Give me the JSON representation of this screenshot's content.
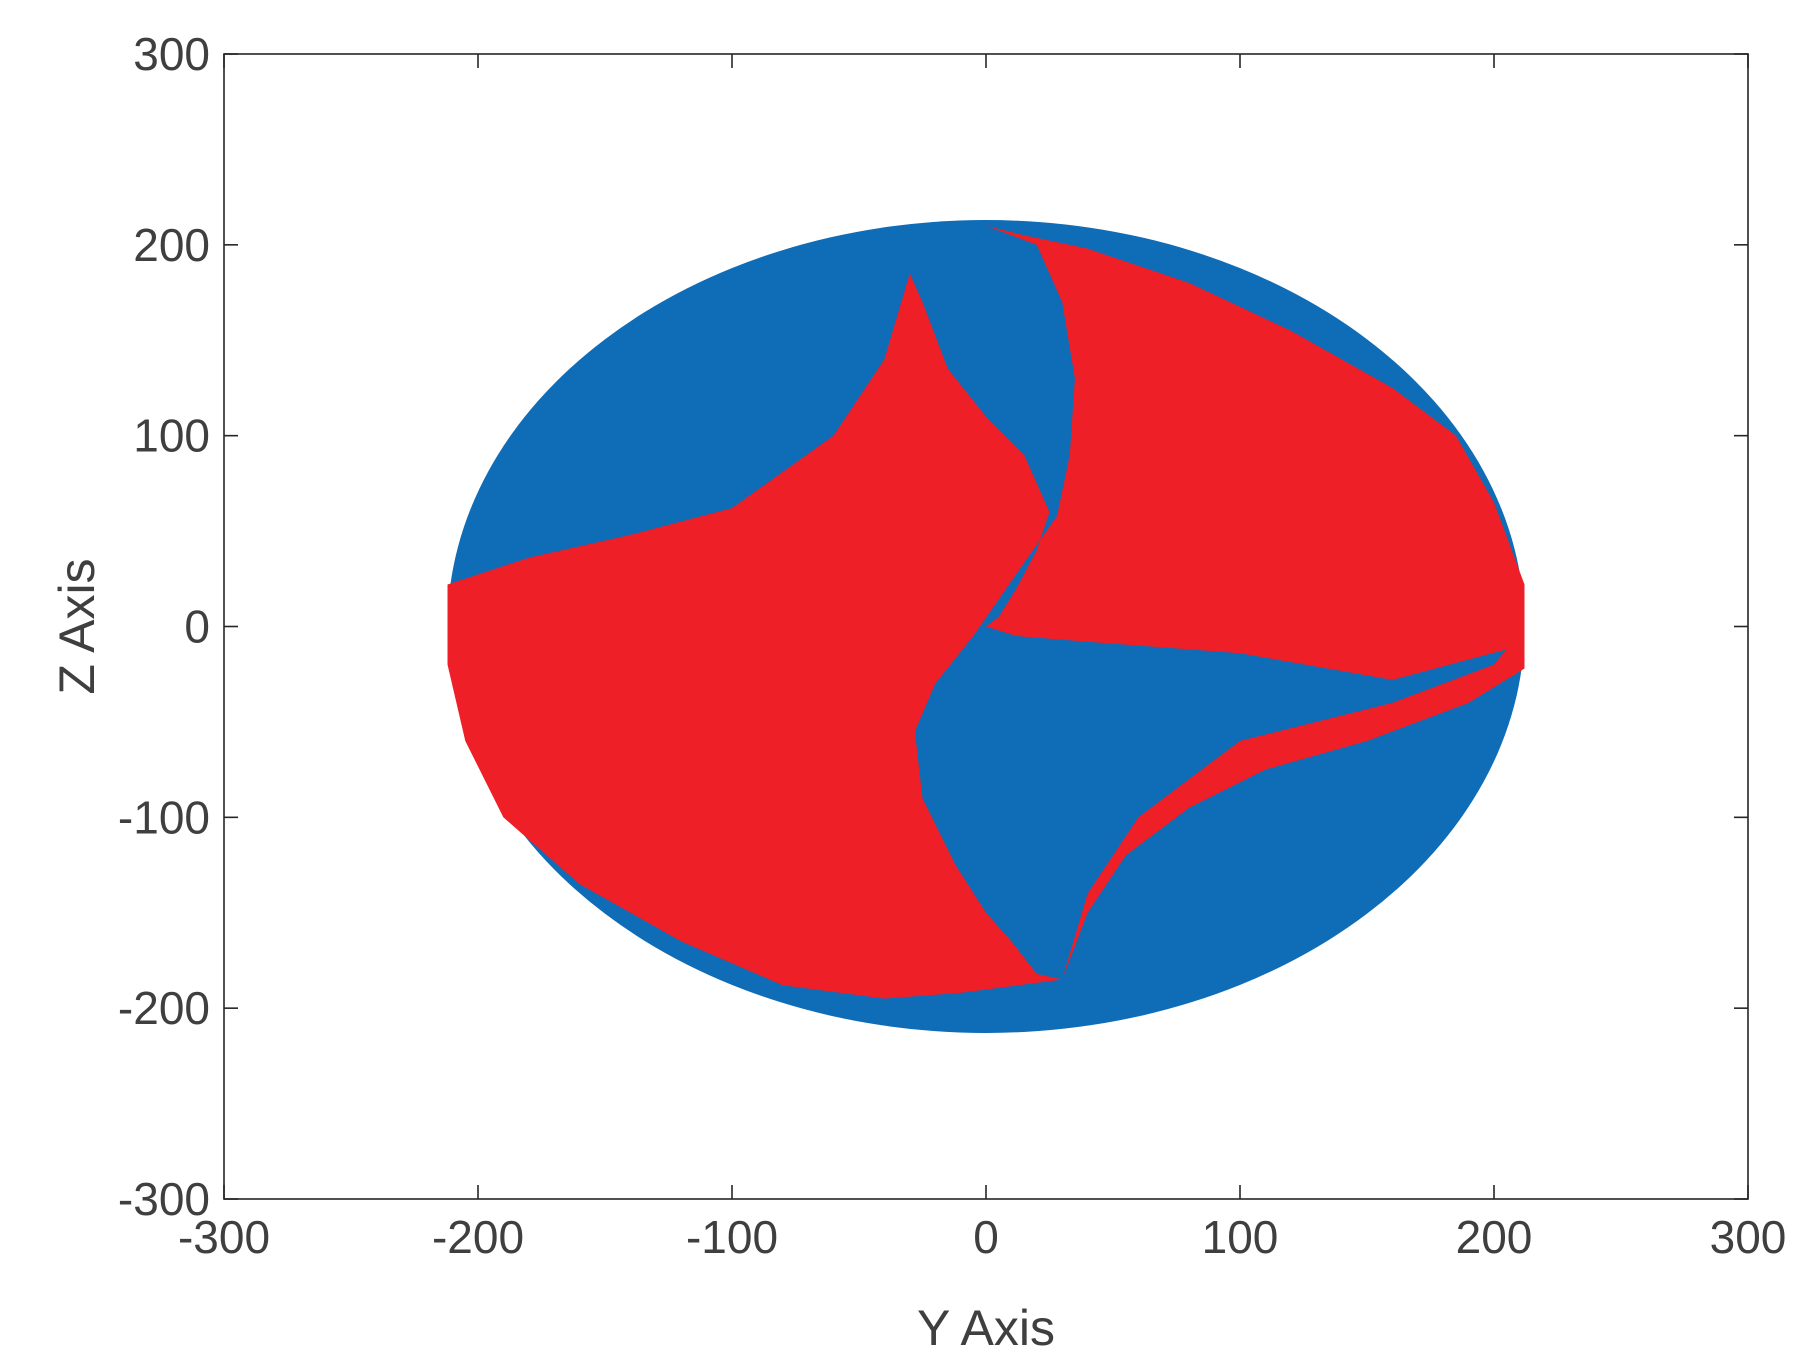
{
  "chart_data": {
    "type": "scatter",
    "title": "",
    "xlabel": "Y Axis",
    "ylabel": "Z Axis",
    "xlim": [
      -300,
      300
    ],
    "ylim": [
      -300,
      300
    ],
    "xticks": [
      -300,
      -200,
      -100,
      0,
      100,
      200,
      300
    ],
    "yticks": [
      -300,
      -200,
      -100,
      0,
      100,
      200,
      300
    ],
    "xtick_labels": [
      "-300",
      "-200",
      "-100",
      "0",
      "100",
      "200",
      "300"
    ],
    "ytick_labels": [
      "-300",
      "-200",
      "-100",
      "0",
      "100",
      "200",
      "300"
    ],
    "grid": false,
    "box": true,
    "colors": {
      "blue": "#0f6cb6",
      "red": "#ee1f27",
      "axis": "#262626",
      "text": "#3f3f3f"
    },
    "series": [
      {
        "color": "blue",
        "shape": "ellipse",
        "center": [
          0,
          0
        ],
        "radius_y": 212,
        "radius_z": 213
      },
      {
        "color": "red",
        "shape": "polygon",
        "points": [
          [
            -212,
            22
          ],
          [
            -180,
            36
          ],
          [
            -140,
            48
          ],
          [
            -100,
            62
          ],
          [
            -60,
            100
          ],
          [
            -40,
            140
          ],
          [
            -30,
            185
          ],
          [
            -25,
            170
          ],
          [
            -15,
            135
          ],
          [
            0,
            110
          ],
          [
            15,
            90
          ],
          [
            25,
            60
          ],
          [
            20,
            40
          ],
          [
            12,
            20
          ],
          [
            5,
            5
          ],
          [
            0,
            0
          ],
          [
            12,
            -5
          ],
          [
            40,
            -8
          ],
          [
            100,
            -14
          ],
          [
            160,
            -28
          ],
          [
            205,
            -12
          ],
          [
            212,
            0
          ],
          [
            212,
            22
          ],
          [
            200,
            65
          ],
          [
            185,
            100
          ],
          [
            160,
            125
          ],
          [
            120,
            155
          ],
          [
            80,
            180
          ],
          [
            40,
            198
          ],
          [
            15,
            205
          ],
          [
            0,
            210
          ],
          [
            20,
            200
          ],
          [
            30,
            170
          ],
          [
            35,
            130
          ],
          [
            33,
            90
          ],
          [
            28,
            58
          ],
          [
            8,
            20
          ],
          [
            -5,
            -5
          ],
          [
            -20,
            -30
          ],
          [
            -28,
            -55
          ],
          [
            -25,
            -90
          ],
          [
            -12,
            -125
          ],
          [
            0,
            -150
          ],
          [
            10,
            -165
          ],
          [
            20,
            -182
          ],
          [
            30,
            -185
          ],
          [
            40,
            -150
          ],
          [
            55,
            -120
          ],
          [
            80,
            -95
          ],
          [
            110,
            -75
          ],
          [
            150,
            -60
          ],
          [
            190,
            -40
          ],
          [
            212,
            -22
          ],
          [
            212,
            0
          ],
          [
            200,
            -20
          ],
          [
            160,
            -40
          ],
          [
            100,
            -60
          ],
          [
            60,
            -100
          ],
          [
            40,
            -140
          ],
          [
            30,
            -185
          ],
          [
            -10,
            -192
          ],
          [
            -40,
            -195
          ],
          [
            -80,
            -188
          ],
          [
            -120,
            -165
          ],
          [
            -160,
            -135
          ],
          [
            -190,
            -100
          ],
          [
            -205,
            -60
          ],
          [
            -212,
            -20
          ]
        ]
      }
    ]
  }
}
